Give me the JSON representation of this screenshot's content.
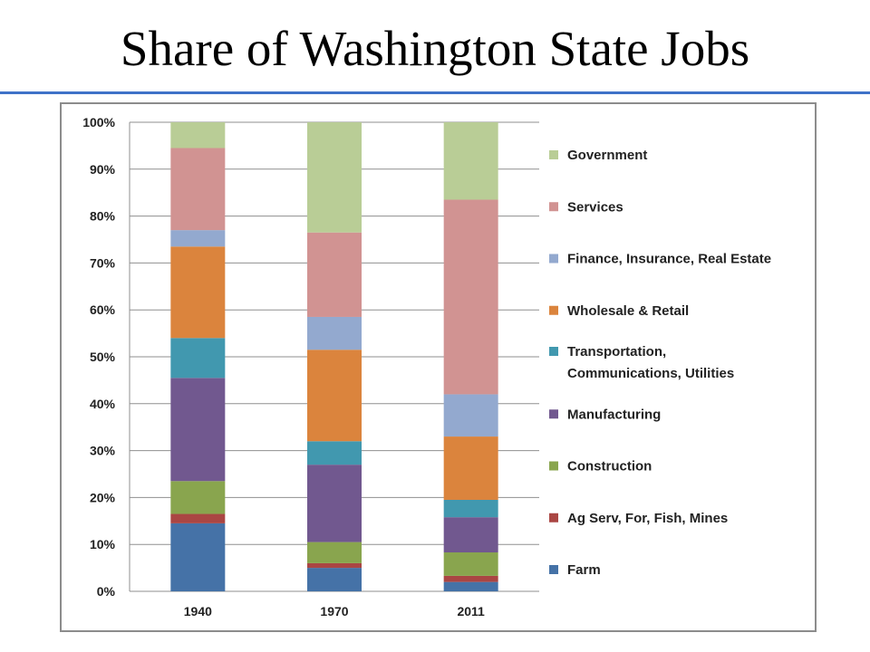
{
  "slide": {
    "title": "Share of Washington State Jobs"
  },
  "chart_data": {
    "type": "bar",
    "stacked": true,
    "percent": true,
    "title": "",
    "xlabel": "",
    "ylabel": "",
    "ylim": [
      0,
      100
    ],
    "yticks": [
      "0%",
      "10%",
      "20%",
      "30%",
      "40%",
      "50%",
      "60%",
      "70%",
      "80%",
      "90%",
      "100%"
    ],
    "categories": [
      "1940",
      "1970",
      "2011"
    ],
    "grid": true,
    "legend_position": "right",
    "series": [
      {
        "name": "Farm",
        "color": "#4572a7",
        "values": [
          14.5,
          5.0,
          2.0
        ]
      },
      {
        "name": "Ag Serv, For, Fish, Mines",
        "color": "#aa4643",
        "values": [
          2.0,
          1.0,
          1.3
        ]
      },
      {
        "name": "Construction",
        "color": "#89a54e",
        "values": [
          7.0,
          4.5,
          5.0
        ]
      },
      {
        "name": "Manufacturing",
        "color": "#71588f",
        "values": [
          22.0,
          16.5,
          7.5
        ]
      },
      {
        "name": "Transportation, Communications, Utilities",
        "color": "#4198af",
        "values": [
          8.5,
          5.0,
          3.7
        ]
      },
      {
        "name": "Wholesale & Retail",
        "color": "#db843d",
        "values": [
          19.5,
          19.5,
          13.5
        ]
      },
      {
        "name": "Finance, Insurance, Real Estate",
        "color": "#93a9cf",
        "values": [
          3.5,
          7.0,
          9.0
        ]
      },
      {
        "name": "Services",
        "color": "#d19392",
        "values": [
          17.5,
          18.0,
          41.5
        ]
      },
      {
        "name": "Government",
        "color": "#b9cd96",
        "values": [
          5.5,
          23.5,
          16.5
        ]
      }
    ],
    "legend_lines": {
      "Transportation, Communications, Utilities": [
        "Transportation,",
        "Communications, Utilities"
      ]
    }
  }
}
